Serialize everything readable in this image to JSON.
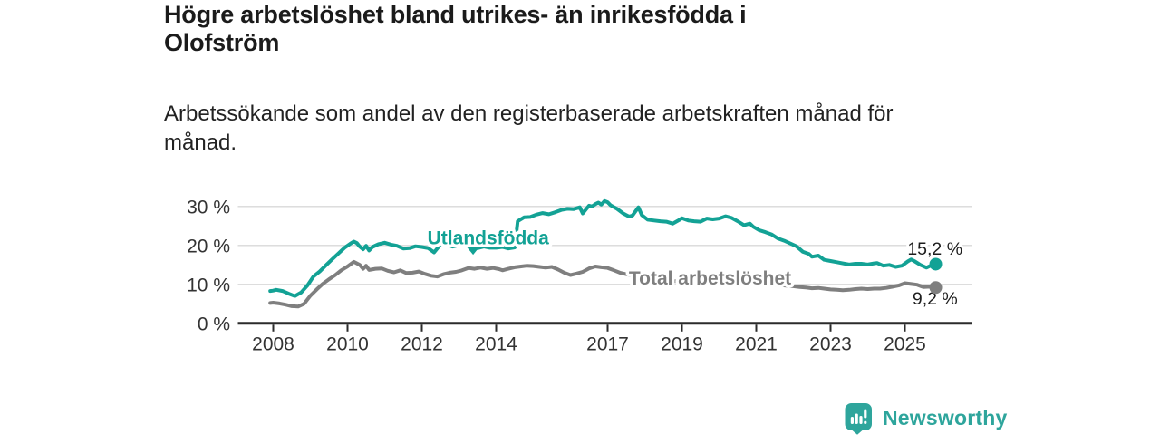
{
  "header": {
    "title_lines": [
      "Högre arbetslöshet bland utrikes- än inrikesfödda i",
      "Olofström"
    ],
    "subtitle_lines": [
      "Arbetssökande som andel av den registerbaserade arbetskraften månad för",
      "månad."
    ]
  },
  "footer": {
    "brand": "Newsworthy"
  },
  "colors": {
    "utlandsfodda": "#13a295",
    "total": "#7f7f7f",
    "logo_teal": "#2ea59c",
    "axis_text": "#333333",
    "title_text": "#1b1b1b"
  },
  "chart_data": {
    "type": "line",
    "title": "Högre arbetslöshet bland utrikes- än inrikesfödda i Olofström",
    "subtitle": "Arbetssökande som andel av den registerbaserade arbetskraften månad för månad.",
    "x_unit": "decimal_year",
    "xlim": [
      2007.7,
      2026.6
    ],
    "ylim": [
      0,
      34.9
    ],
    "grid": "horizontal",
    "xticks": {
      "values": [
        2008,
        2010,
        2012,
        2014,
        2017,
        2019,
        2021,
        2023,
        2025
      ],
      "labels": [
        "2008",
        "2010",
        "2012",
        "2014",
        "2017",
        "2019",
        "2021",
        "2023",
        "2025"
      ]
    },
    "yticks": {
      "values": [
        0,
        10,
        20,
        30
      ],
      "labels": [
        "0 %",
        "10 %",
        "20 %",
        "30 %"
      ]
    },
    "series": [
      {
        "name": "Utlandsfödda",
        "color": "#13a295",
        "end_label": "15,2 %",
        "points": [
          [
            2007.92,
            8.3
          ],
          [
            2008.0,
            8.4
          ],
          [
            2008.08,
            8.6
          ],
          [
            2008.25,
            8.3
          ],
          [
            2008.42,
            7.6
          ],
          [
            2008.58,
            7.0
          ],
          [
            2008.75,
            7.9
          ],
          [
            2008.92,
            9.7
          ],
          [
            2009.08,
            12.0
          ],
          [
            2009.25,
            13.3
          ],
          [
            2009.42,
            14.9
          ],
          [
            2009.58,
            16.4
          ],
          [
            2009.75,
            17.9
          ],
          [
            2009.92,
            19.4
          ],
          [
            2010.08,
            20.5
          ],
          [
            2010.17,
            21.0
          ],
          [
            2010.25,
            20.6
          ],
          [
            2010.33,
            19.7
          ],
          [
            2010.42,
            19.0
          ],
          [
            2010.5,
            19.9
          ],
          [
            2010.58,
            18.7
          ],
          [
            2010.67,
            19.6
          ],
          [
            2010.83,
            20.3
          ],
          [
            2011.0,
            20.7
          ],
          [
            2011.17,
            20.2
          ],
          [
            2011.33,
            19.9
          ],
          [
            2011.5,
            19.2
          ],
          [
            2011.67,
            19.3
          ],
          [
            2011.83,
            19.8
          ],
          [
            2012.0,
            19.6
          ],
          [
            2012.17,
            19.3
          ],
          [
            2012.33,
            18.2
          ],
          [
            2012.5,
            20.2
          ],
          [
            2012.67,
            20.3
          ],
          [
            2012.83,
            19.7
          ],
          [
            2013.0,
            20.1
          ],
          [
            2013.17,
            20.2
          ],
          [
            2013.33,
            19.6
          ],
          [
            2013.5,
            19.3
          ],
          [
            2013.67,
            19.7
          ],
          [
            2013.83,
            19.4
          ],
          [
            2014.0,
            19.4
          ],
          [
            2014.17,
            19.6
          ],
          [
            2014.33,
            19.2
          ],
          [
            2014.5,
            19.5
          ],
          [
            2014.58,
            26.2
          ],
          [
            2014.75,
            27.2
          ],
          [
            2014.92,
            27.3
          ],
          [
            2015.08,
            27.9
          ],
          [
            2015.25,
            28.3
          ],
          [
            2015.42,
            28.0
          ],
          [
            2015.58,
            28.5
          ],
          [
            2015.75,
            29.1
          ],
          [
            2015.92,
            29.4
          ],
          [
            2016.08,
            29.3
          ],
          [
            2016.25,
            29.8
          ],
          [
            2016.33,
            28.2
          ],
          [
            2016.5,
            30.2
          ],
          [
            2016.58,
            30.0
          ],
          [
            2016.67,
            30.6
          ],
          [
            2016.75,
            31.0
          ],
          [
            2016.83,
            30.5
          ],
          [
            2016.92,
            31.4
          ],
          [
            2017.0,
            31.1
          ],
          [
            2017.08,
            30.3
          ],
          [
            2017.25,
            29.4
          ],
          [
            2017.42,
            28.2
          ],
          [
            2017.58,
            27.4
          ],
          [
            2017.67,
            27.7
          ],
          [
            2017.83,
            29.8
          ],
          [
            2017.92,
            27.8
          ],
          [
            2018.08,
            26.6
          ],
          [
            2018.25,
            26.4
          ],
          [
            2018.42,
            26.2
          ],
          [
            2018.58,
            26.1
          ],
          [
            2018.75,
            25.6
          ],
          [
            2018.92,
            26.5
          ],
          [
            2019.0,
            27.0
          ],
          [
            2019.17,
            26.4
          ],
          [
            2019.33,
            26.2
          ],
          [
            2019.5,
            26.1
          ],
          [
            2019.67,
            26.9
          ],
          [
            2019.83,
            26.7
          ],
          [
            2020.0,
            26.9
          ],
          [
            2020.17,
            27.5
          ],
          [
            2020.33,
            27.1
          ],
          [
            2020.5,
            26.2
          ],
          [
            2020.67,
            25.2
          ],
          [
            2020.83,
            25.6
          ],
          [
            2020.92,
            24.8
          ],
          [
            2021.08,
            23.9
          ],
          [
            2021.25,
            23.4
          ],
          [
            2021.42,
            22.8
          ],
          [
            2021.58,
            21.8
          ],
          [
            2021.75,
            21.2
          ],
          [
            2021.92,
            20.5
          ],
          [
            2022.08,
            19.8
          ],
          [
            2022.25,
            18.4
          ],
          [
            2022.42,
            17.8
          ],
          [
            2022.5,
            17.1
          ],
          [
            2022.67,
            17.4
          ],
          [
            2022.83,
            16.3
          ],
          [
            2023.0,
            16.0
          ],
          [
            2023.17,
            15.7
          ],
          [
            2023.33,
            15.4
          ],
          [
            2023.5,
            15.1
          ],
          [
            2023.67,
            15.3
          ],
          [
            2023.83,
            15.3
          ],
          [
            2024.0,
            15.1
          ],
          [
            2024.17,
            15.4
          ],
          [
            2024.25,
            15.5
          ],
          [
            2024.42,
            14.8
          ],
          [
            2024.58,
            15.0
          ],
          [
            2024.75,
            14.5
          ],
          [
            2024.92,
            14.8
          ],
          [
            2025.08,
            15.9
          ],
          [
            2025.17,
            16.4
          ],
          [
            2025.25,
            16.0
          ],
          [
            2025.42,
            15.0
          ],
          [
            2025.58,
            14.3
          ],
          [
            2025.67,
            14.7
          ],
          [
            2025.83,
            15.2
          ]
        ]
      },
      {
        "name": "Total arbetslöshet",
        "color": "#7f7f7f",
        "end_label": "9,2 %",
        "points": [
          [
            2007.92,
            5.2
          ],
          [
            2008.0,
            5.3
          ],
          [
            2008.17,
            5.1
          ],
          [
            2008.33,
            4.8
          ],
          [
            2008.5,
            4.4
          ],
          [
            2008.67,
            4.3
          ],
          [
            2008.83,
            5.0
          ],
          [
            2009.0,
            7.1
          ],
          [
            2009.17,
            8.7
          ],
          [
            2009.33,
            10.1
          ],
          [
            2009.5,
            11.3
          ],
          [
            2009.67,
            12.4
          ],
          [
            2009.83,
            13.6
          ],
          [
            2010.0,
            14.6
          ],
          [
            2010.17,
            15.8
          ],
          [
            2010.33,
            15.0
          ],
          [
            2010.42,
            14.0
          ],
          [
            2010.5,
            14.8
          ],
          [
            2010.58,
            13.7
          ],
          [
            2010.75,
            14.0
          ],
          [
            2010.92,
            14.1
          ],
          [
            2011.08,
            13.5
          ],
          [
            2011.25,
            13.1
          ],
          [
            2011.42,
            13.6
          ],
          [
            2011.58,
            12.9
          ],
          [
            2011.75,
            13.0
          ],
          [
            2011.92,
            13.3
          ],
          [
            2012.08,
            12.7
          ],
          [
            2012.25,
            12.2
          ],
          [
            2012.42,
            12.0
          ],
          [
            2012.58,
            12.6
          ],
          [
            2012.75,
            13.0
          ],
          [
            2012.92,
            13.2
          ],
          [
            2013.08,
            13.6
          ],
          [
            2013.25,
            14.2
          ],
          [
            2013.42,
            14.0
          ],
          [
            2013.58,
            14.3
          ],
          [
            2013.75,
            14.0
          ],
          [
            2013.92,
            14.2
          ],
          [
            2014.08,
            13.9
          ],
          [
            2014.17,
            13.6
          ],
          [
            2014.33,
            14.0
          ],
          [
            2014.5,
            14.4
          ],
          [
            2014.67,
            14.6
          ],
          [
            2014.83,
            14.8
          ],
          [
            2015.0,
            14.7
          ],
          [
            2015.17,
            14.5
          ],
          [
            2015.33,
            14.3
          ],
          [
            2015.5,
            14.5
          ],
          [
            2015.67,
            13.8
          ],
          [
            2015.83,
            13.0
          ],
          [
            2016.0,
            12.4
          ],
          [
            2016.17,
            12.8
          ],
          [
            2016.33,
            13.2
          ],
          [
            2016.5,
            14.1
          ],
          [
            2016.67,
            14.6
          ],
          [
            2016.83,
            14.4
          ],
          [
            2017.0,
            14.2
          ],
          [
            2017.17,
            13.6
          ],
          [
            2017.33,
            13.0
          ],
          [
            2017.5,
            12.6
          ],
          [
            2017.75,
            12.0
          ],
          [
            2018.0,
            11.6
          ],
          [
            2018.33,
            11.2
          ],
          [
            2018.67,
            10.9
          ],
          [
            2019.0,
            10.7
          ],
          [
            2019.33,
            10.5
          ],
          [
            2019.67,
            10.4
          ],
          [
            2020.0,
            10.6
          ],
          [
            2020.33,
            10.9
          ],
          [
            2020.67,
            10.7
          ],
          [
            2021.0,
            10.4
          ],
          [
            2021.33,
            10.1
          ],
          [
            2021.67,
            9.8
          ],
          [
            2022.0,
            9.5
          ],
          [
            2022.17,
            9.3
          ],
          [
            2022.33,
            9.2
          ],
          [
            2022.5,
            9.0
          ],
          [
            2022.67,
            9.1
          ],
          [
            2022.83,
            8.9
          ],
          [
            2023.0,
            8.7
          ],
          [
            2023.17,
            8.6
          ],
          [
            2023.33,
            8.5
          ],
          [
            2023.5,
            8.6
          ],
          [
            2023.67,
            8.8
          ],
          [
            2023.83,
            8.9
          ],
          [
            2024.0,
            8.8
          ],
          [
            2024.17,
            8.9
          ],
          [
            2024.33,
            8.9
          ],
          [
            2024.5,
            9.1
          ],
          [
            2024.67,
            9.4
          ],
          [
            2024.83,
            9.7
          ],
          [
            2025.0,
            10.3
          ],
          [
            2025.17,
            10.1
          ],
          [
            2025.33,
            9.9
          ],
          [
            2025.5,
            9.3
          ],
          [
            2025.67,
            9.4
          ],
          [
            2025.83,
            9.2
          ]
        ]
      }
    ],
    "annotations": [
      {
        "type": "series-label",
        "text": "Utlandsfödda",
        "series": 0,
        "x": 2012.15,
        "v": 20.3,
        "anchor": "start",
        "marker": {
          "x": 2013.38,
          "v_top": 19.45,
          "v_tip": 17.6
        }
      },
      {
        "type": "series-label",
        "text": "Total arbetslöshet",
        "series": 1,
        "x": 2017.57,
        "v": 9.95,
        "anchor": "start"
      },
      {
        "type": "value-label",
        "text": "15,2 %",
        "x": 2026.55,
        "v": 17.65,
        "anchor": "end"
      },
      {
        "type": "value-label",
        "text": "9,2 %",
        "x": 2026.42,
        "v": 4.85,
        "anchor": "end"
      }
    ],
    "legend_position": "inline-labels"
  }
}
